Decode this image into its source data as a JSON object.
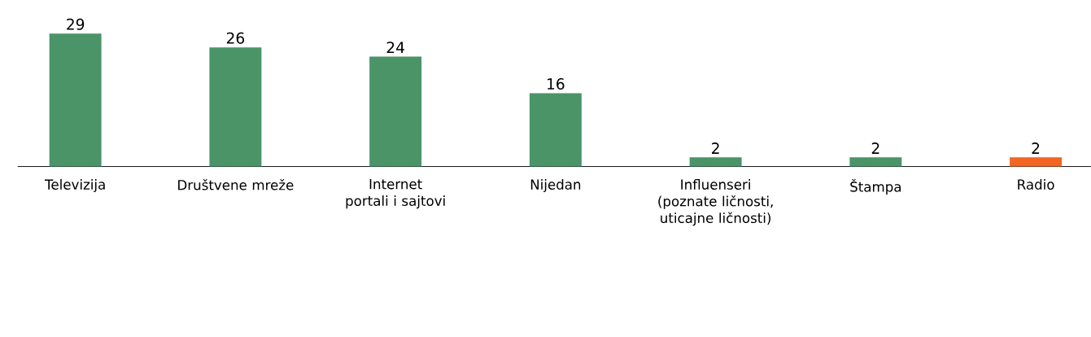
{
  "chart_data": {
    "type": "bar",
    "categories": [
      "Televizija",
      "Društvene mreže",
      "Internet portali i sajtovi",
      "Nijedan",
      "Influenseri (poznate ličnosti, uticajne ličnosti)",
      "Štampa",
      "Radio"
    ],
    "values": [
      29,
      26,
      24,
      16,
      2,
      2,
      2
    ],
    "colors": [
      "#4a9468",
      "#4a9468",
      "#4a9468",
      "#4a9468",
      "#4a9468",
      "#4a9468",
      "#f26522"
    ],
    "data_labels": true
  }
}
